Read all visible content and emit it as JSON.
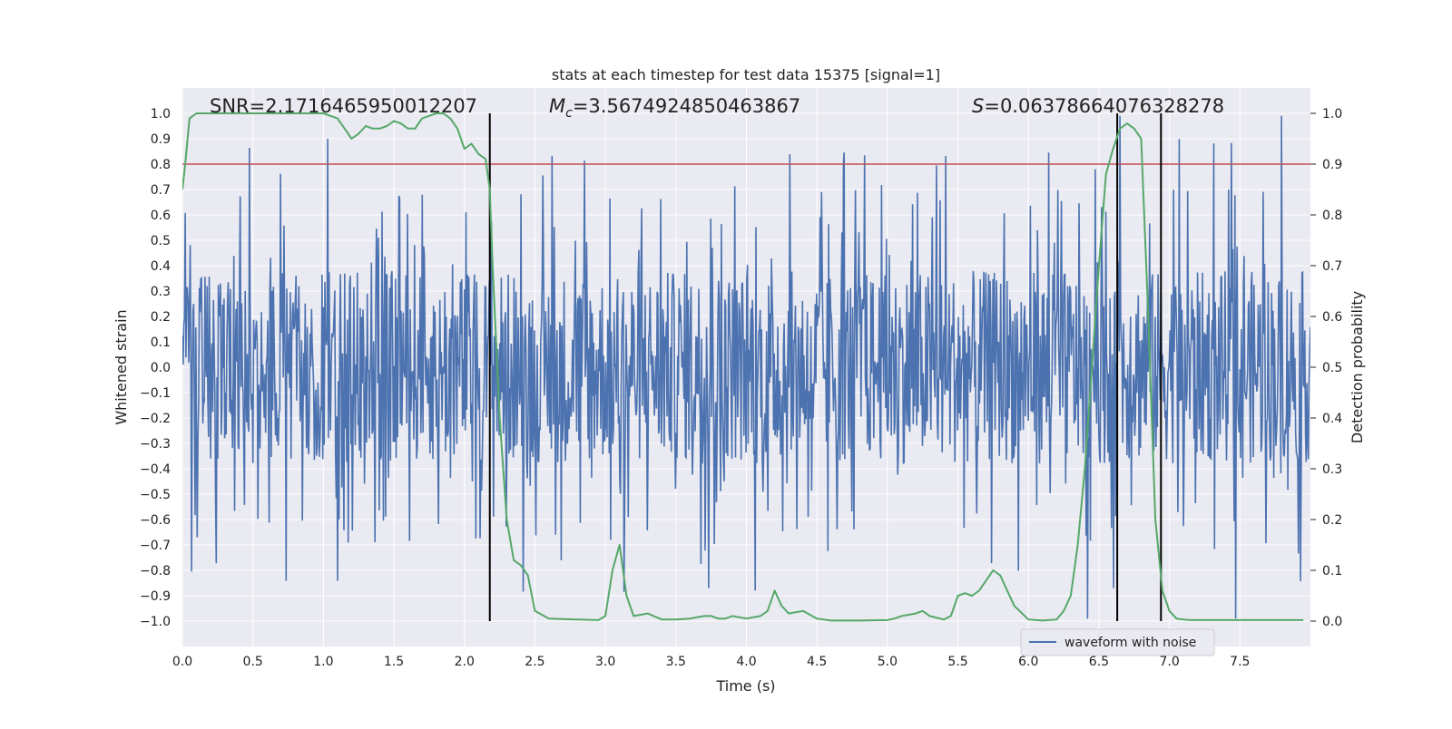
{
  "chart_data": {
    "type": "line",
    "title": "stats at each timestep for test data 15375 [signal=1]",
    "xlabel": "Time (s)",
    "ylabel": "Whitened strain",
    "y2label": "Detection probability",
    "xlim": [
      0,
      8
    ],
    "ylim": [
      -1.1,
      1.1
    ],
    "y2lim": [
      -0.05,
      1.05
    ],
    "x_ticks": [
      "0.0",
      "0.5",
      "1.0",
      "1.5",
      "2.0",
      "2.5",
      "3.0",
      "3.5",
      "4.0",
      "4.5",
      "5.0",
      "5.5",
      "6.0",
      "6.5",
      "7.0",
      "7.5"
    ],
    "y_ticks": [
      "−1.0",
      "−0.9",
      "−0.8",
      "−0.7",
      "−0.6",
      "−0.5",
      "−0.4",
      "−0.3",
      "−0.2",
      "−0.1",
      "0.0",
      "0.1",
      "0.2",
      "0.3",
      "0.4",
      "0.5",
      "0.6",
      "0.7",
      "0.8",
      "0.9",
      "1.0"
    ],
    "y2_ticks": [
      "0.0",
      "0.1",
      "0.2",
      "0.3",
      "0.4",
      "0.5",
      "0.6",
      "0.7",
      "0.8",
      "0.9",
      "1.0"
    ],
    "annotations": {
      "snr": "SNR=2.1716465950012207",
      "mc_value": "=3.5674924850463867",
      "s_value": "=0.06378664076328278",
      "mc_symbol": "M",
      "mc_subscript": "c",
      "s_symbol": "S"
    },
    "threshold": {
      "value": 0.9,
      "axis": "y2",
      "color": "#c44e52"
    },
    "vertical_lines": [
      2.18,
      6.63,
      6.94
    ],
    "legend": {
      "label": "waveform with noise",
      "placement": "lower-right"
    },
    "colors": {
      "waveform": "#4c72b0",
      "probability": "#55a868",
      "threshold": "#c44e52",
      "vline": "#000000",
      "background": "#eaeaf2"
    },
    "series": [
      {
        "name": "waveform with noise",
        "axis": "y",
        "description": "dense whitened strain time series sampled over 0–8 s; core band roughly ±0.4 with spikes reaching about ±0.9",
        "x_range": [
          0,
          8
        ],
        "n_samples": 1600,
        "core_amplitude": 0.38,
        "spike_max": 0.99,
        "spike_min": -0.99
      },
      {
        "name": "Detection probability",
        "axis": "y2",
        "x": [
          0.0,
          0.02,
          0.05,
          0.1,
          0.2,
          0.4,
          0.6,
          0.8,
          1.0,
          1.05,
          1.1,
          1.15,
          1.2,
          1.25,
          1.3,
          1.35,
          1.4,
          1.45,
          1.5,
          1.55,
          1.6,
          1.65,
          1.7,
          1.75,
          1.8,
          1.85,
          1.9,
          1.95,
          2.0,
          2.05,
          2.1,
          2.15,
          2.18,
          2.2,
          2.25,
          2.3,
          2.35,
          2.4,
          2.45,
          2.5,
          2.6,
          2.8,
          2.95,
          3.0,
          3.05,
          3.1,
          3.15,
          3.2,
          3.3,
          3.4,
          3.5,
          3.6,
          3.7,
          3.75,
          3.8,
          3.85,
          3.9,
          4.0,
          4.1,
          4.15,
          4.2,
          4.25,
          4.3,
          4.4,
          4.5,
          4.6,
          4.8,
          5.0,
          5.05,
          5.1,
          5.2,
          5.25,
          5.3,
          5.4,
          5.45,
          5.5,
          5.55,
          5.6,
          5.65,
          5.7,
          5.75,
          5.8,
          5.85,
          5.9,
          6.0,
          6.1,
          6.2,
          6.25,
          6.3,
          6.35,
          6.4,
          6.45,
          6.5,
          6.55,
          6.6,
          6.65,
          6.7,
          6.75,
          6.8,
          6.85,
          6.9,
          6.95,
          7.0,
          7.05,
          7.1,
          7.15,
          7.2,
          7.3,
          7.5,
          7.7,
          7.9,
          7.95
        ],
        "y": [
          0.85,
          0.9,
          0.99,
          1.0,
          1.0,
          1.0,
          1.0,
          1.0,
          1.0,
          0.995,
          0.99,
          0.97,
          0.95,
          0.96,
          0.975,
          0.97,
          0.97,
          0.975,
          0.985,
          0.98,
          0.97,
          0.97,
          0.99,
          0.995,
          1.0,
          1.0,
          0.99,
          0.97,
          0.93,
          0.94,
          0.92,
          0.91,
          0.85,
          0.7,
          0.4,
          0.2,
          0.12,
          0.11,
          0.09,
          0.02,
          0.005,
          0.003,
          0.002,
          0.01,
          0.1,
          0.15,
          0.05,
          0.01,
          0.015,
          0.003,
          0.003,
          0.005,
          0.01,
          0.01,
          0.005,
          0.005,
          0.01,
          0.005,
          0.01,
          0.02,
          0.06,
          0.03,
          0.015,
          0.02,
          0.005,
          0.001,
          0.001,
          0.002,
          0.005,
          0.01,
          0.015,
          0.02,
          0.01,
          0.003,
          0.01,
          0.05,
          0.055,
          0.05,
          0.06,
          0.08,
          0.1,
          0.09,
          0.06,
          0.03,
          0.003,
          0.001,
          0.003,
          0.02,
          0.05,
          0.15,
          0.3,
          0.5,
          0.7,
          0.88,
          0.93,
          0.97,
          0.98,
          0.97,
          0.95,
          0.6,
          0.2,
          0.06,
          0.02,
          0.005,
          0.003,
          0.002,
          0.002,
          0.002,
          0.002,
          0.002,
          0.002,
          0.002
        ]
      }
    ]
  }
}
